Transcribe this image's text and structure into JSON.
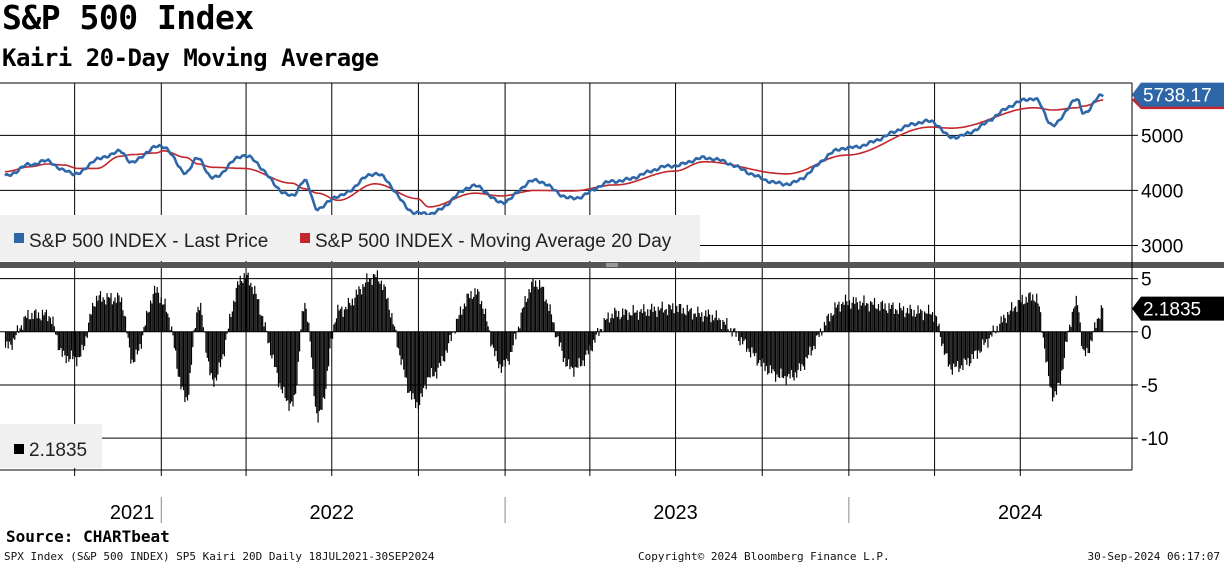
{
  "header": {
    "title": "S&P 500 Index",
    "subtitle": "Kairi 20-Day Moving Average"
  },
  "source": "Source: CHARTbeat",
  "footer": {
    "left": "SPX Index (S&P 500 INDEX) SP5 Kairi 20D  Daily 18JUL2021-30SEP2024",
    "center": "Copyright© 2024 Bloomberg Finance L.P.",
    "right": "30-Sep-2024 06:17:07"
  },
  "colors": {
    "price": "#2e67a8",
    "moving_average": "#c1272d",
    "kairi_bars": "#000000",
    "last_value_bg": "#2e67a8"
  },
  "chart_data": [
    {
      "type": "line",
      "title": "S&P 500 Index",
      "x_range": [
        "2021-07-18",
        "2024-09-30"
      ],
      "ylim": [
        2700,
        5950
      ],
      "y_ticks": [
        3000,
        4000,
        5000
      ],
      "grid": true,
      "legend_position": "bottom-left",
      "last_value_label": "5738.17",
      "x_ticks": [
        "2021",
        "2022",
        "2023",
        "2024"
      ],
      "x_tick_dates": [
        "2021-12-01",
        "2022-07-01",
        "2023-07-01",
        "2024-07-01"
      ],
      "series": [
        {
          "name": "S&P 500 INDEX - Last Price",
          "points": [
            [
              "2021-07-19",
              4258
            ],
            [
              "2021-08-15",
              4470
            ],
            [
              "2021-09-02",
              4537
            ],
            [
              "2021-09-20",
              4357
            ],
            [
              "2021-10-04",
              4300
            ],
            [
              "2021-10-25",
              4566
            ],
            [
              "2021-11-18",
              4705
            ],
            [
              "2021-12-01",
              4513
            ],
            [
              "2021-12-27",
              4791
            ],
            [
              "2022-01-03",
              4796
            ],
            [
              "2022-01-27",
              4326
            ],
            [
              "2022-02-09",
              4587
            ],
            [
              "2022-02-24",
              4225
            ],
            [
              "2022-03-29",
              4631
            ],
            [
              "2022-05-20",
              3901
            ],
            [
              "2022-06-02",
              4176
            ],
            [
              "2022-06-16",
              3666
            ],
            [
              "2022-07-08",
              3899
            ],
            [
              "2022-08-16",
              4305
            ],
            [
              "2022-09-30",
              3585
            ],
            [
              "2022-10-12",
              3577
            ],
            [
              "2022-11-30",
              4080
            ],
            [
              "2022-12-28",
              3783
            ],
            [
              "2023-02-02",
              4179
            ],
            [
              "2023-03-13",
              3855
            ],
            [
              "2023-04-28",
              4169
            ],
            [
              "2023-06-30",
              4450
            ],
            [
              "2023-07-31",
              4589
            ],
            [
              "2023-10-27",
              4117
            ],
            [
              "2023-12-29",
              4770
            ],
            [
              "2024-03-28",
              5254
            ],
            [
              "2024-04-19",
              4967
            ],
            [
              "2024-07-16",
              5667
            ],
            [
              "2024-08-05",
              5186
            ],
            [
              "2024-08-30",
              5648
            ],
            [
              "2024-09-06",
              5408
            ],
            [
              "2024-09-27",
              5738
            ]
          ]
        },
        {
          "name": "S&P 500 INDEX - Moving Average 20 Day",
          "points": [
            [
              "2021-07-19",
              4340
            ],
            [
              "2021-08-15",
              4430
            ],
            [
              "2021-09-02",
              4480
            ],
            [
              "2021-09-20",
              4460
            ],
            [
              "2021-10-04",
              4400
            ],
            [
              "2021-10-25",
              4400
            ],
            [
              "2021-11-18",
              4620
            ],
            [
              "2021-12-01",
              4650
            ],
            [
              "2021-12-27",
              4680
            ],
            [
              "2022-01-03",
              4720
            ],
            [
              "2022-01-27",
              4600
            ],
            [
              "2022-02-09",
              4480
            ],
            [
              "2022-02-24",
              4420
            ],
            [
              "2022-03-29",
              4400
            ],
            [
              "2022-05-20",
              4130
            ],
            [
              "2022-06-02",
              4030
            ],
            [
              "2022-06-16",
              3950
            ],
            [
              "2022-07-08",
              3820
            ],
            [
              "2022-08-16",
              4120
            ],
            [
              "2022-09-30",
              3850
            ],
            [
              "2022-10-12",
              3700
            ],
            [
              "2022-11-30",
              3950
            ],
            [
              "2022-12-28",
              3900
            ],
            [
              "2023-02-02",
              4000
            ],
            [
              "2023-03-13",
              3990
            ],
            [
              "2023-04-28",
              4100
            ],
            [
              "2023-06-30",
              4350
            ],
            [
              "2023-07-31",
              4520
            ],
            [
              "2023-10-27",
              4300
            ],
            [
              "2023-12-29",
              4640
            ],
            [
              "2024-03-28",
              5150
            ],
            [
              "2024-04-19",
              5130
            ],
            [
              "2024-07-16",
              5500
            ],
            [
              "2024-08-05",
              5460
            ],
            [
              "2024-08-30",
              5500
            ],
            [
              "2024-09-06",
              5530
            ],
            [
              "2024-09-27",
              5640
            ]
          ]
        }
      ]
    },
    {
      "type": "bar",
      "title": "Kairi 20-Day Moving Average",
      "ylim": [
        -13,
        6
      ],
      "y_ticks": [
        5,
        0,
        -5,
        -10
      ],
      "grid": true,
      "legend_position": "bottom-left",
      "last_value_label": "2.1835",
      "series": [
        {
          "name": "2.1835",
          "points": [
            [
              "2021-07-19",
              -1.5
            ],
            [
              "2021-08-15",
              1.6
            ],
            [
              "2021-09-02",
              1.6
            ],
            [
              "2021-09-20",
              -2.4
            ],
            [
              "2021-10-04",
              -2.5
            ],
            [
              "2021-10-25",
              3.2
            ],
            [
              "2021-11-18",
              3.1
            ],
            [
              "2021-12-01",
              -2.7
            ],
            [
              "2021-12-27",
              3.9
            ],
            [
              "2022-01-03",
              2.5
            ],
            [
              "2022-01-27",
              -6.3
            ],
            [
              "2022-02-09",
              2.4
            ],
            [
              "2022-02-24",
              -4.6
            ],
            [
              "2022-03-29",
              5.2
            ],
            [
              "2022-05-20",
              -6.9
            ],
            [
              "2022-06-02",
              2.5
            ],
            [
              "2022-06-16",
              -8.0
            ],
            [
              "2022-07-08",
              2.0
            ],
            [
              "2022-08-16",
              5.2
            ],
            [
              "2022-09-30",
              -6.8
            ],
            [
              "2022-10-12",
              -4.2
            ],
            [
              "2022-11-30",
              3.7
            ],
            [
              "2022-12-28",
              -3.3
            ],
            [
              "2023-02-02",
              4.6
            ],
            [
              "2023-03-13",
              -3.5
            ],
            [
              "2023-04-28",
              1.7
            ],
            [
              "2023-06-30",
              2.2
            ],
            [
              "2023-07-31",
              1.6
            ],
            [
              "2023-10-27",
              -4.3
            ],
            [
              "2023-12-29",
              2.8
            ],
            [
              "2024-03-28",
              1.8
            ],
            [
              "2024-04-19",
              -3.4
            ],
            [
              "2024-07-16",
              3.3
            ],
            [
              "2024-08-05",
              -6.0
            ],
            [
              "2024-08-30",
              2.7
            ],
            [
              "2024-09-06",
              -2.2
            ],
            [
              "2024-09-27",
              2.18
            ]
          ]
        }
      ]
    }
  ]
}
